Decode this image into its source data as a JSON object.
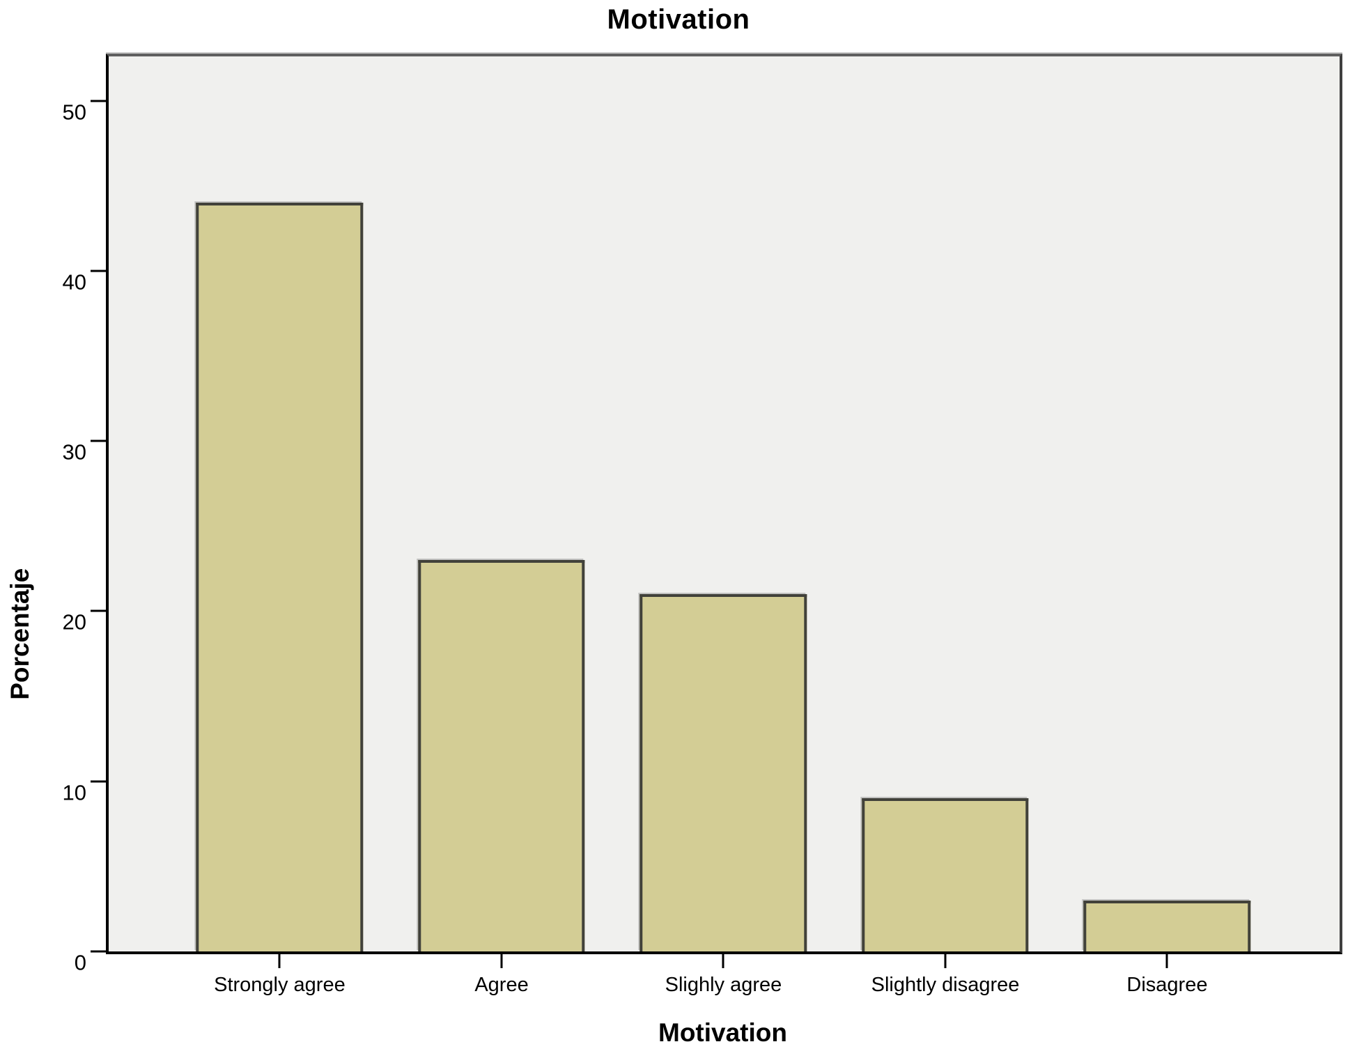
{
  "title": "Motivation",
  "chart_data": {
    "type": "bar",
    "title": "Motivation",
    "xlabel": "Motivation",
    "ylabel": "Porcentaje",
    "categories": [
      "Strongly agree",
      "Agree",
      "Slighly agree",
      "Slightly disagree",
      "Disagree"
    ],
    "values": [
      44,
      23,
      21,
      9,
      3
    ],
    "ylim": [
      0,
      52.6
    ],
    "yticks": [
      0,
      10,
      20,
      30,
      40,
      50
    ],
    "grid": false,
    "legend_position": "none",
    "plot_background": "#f0f0ee",
    "figure_background": "#ffffff",
    "bar_fill_color": "#d3cd95",
    "bar_border_color": "#41413a",
    "axis_color": "#000000",
    "text_color": "#000000"
  }
}
